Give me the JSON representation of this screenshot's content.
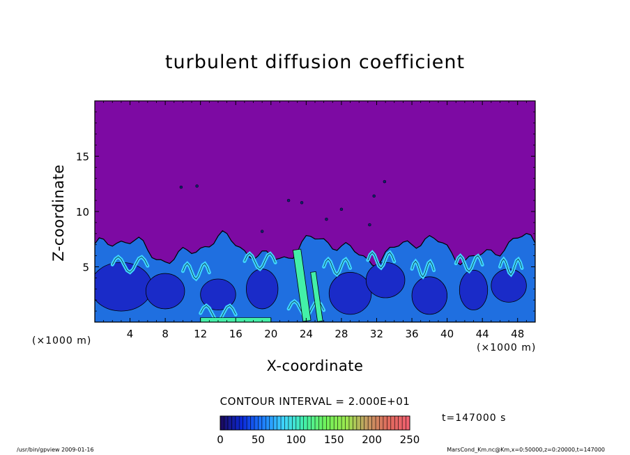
{
  "chart_data": {
    "type": "heatmap",
    "title": "turbulent diffusion coefficient",
    "xlabel": "X-coordinate",
    "ylabel": "Z-coordinate",
    "x_unit_label": "(×1000 m)",
    "xlim": [
      0,
      50
    ],
    "ylim": [
      0,
      20
    ],
    "x_ticks": [
      4,
      8,
      12,
      16,
      20,
      24,
      28,
      32,
      36,
      40,
      44,
      48
    ],
    "y_ticks": [
      5,
      10,
      15
    ],
    "contour_interval_text": "CONTOUR INTERVAL = 2.000E+01",
    "time_text": "t=147000 s",
    "colorbar": {
      "min": 0,
      "max": 250,
      "tick_values": [
        0,
        50,
        100,
        150,
        200,
        250
      ],
      "colors": [
        "#1a0a5e",
        "#0b2ad9",
        "#1c7dff",
        "#3fd6ff",
        "#43f0a8",
        "#6ff25a",
        "#9be84f",
        "#c49a62",
        "#e06a5c",
        "#f06070"
      ]
    },
    "background_color": "#7d0aa3",
    "boundary_layer_top_km": 7.2
  },
  "footer": {
    "left": "/usr/bin/gpview   2009-01-16",
    "right": "MarsCond_Km.nc@Km,x=0:50000,z=0:20000,t=147000"
  }
}
